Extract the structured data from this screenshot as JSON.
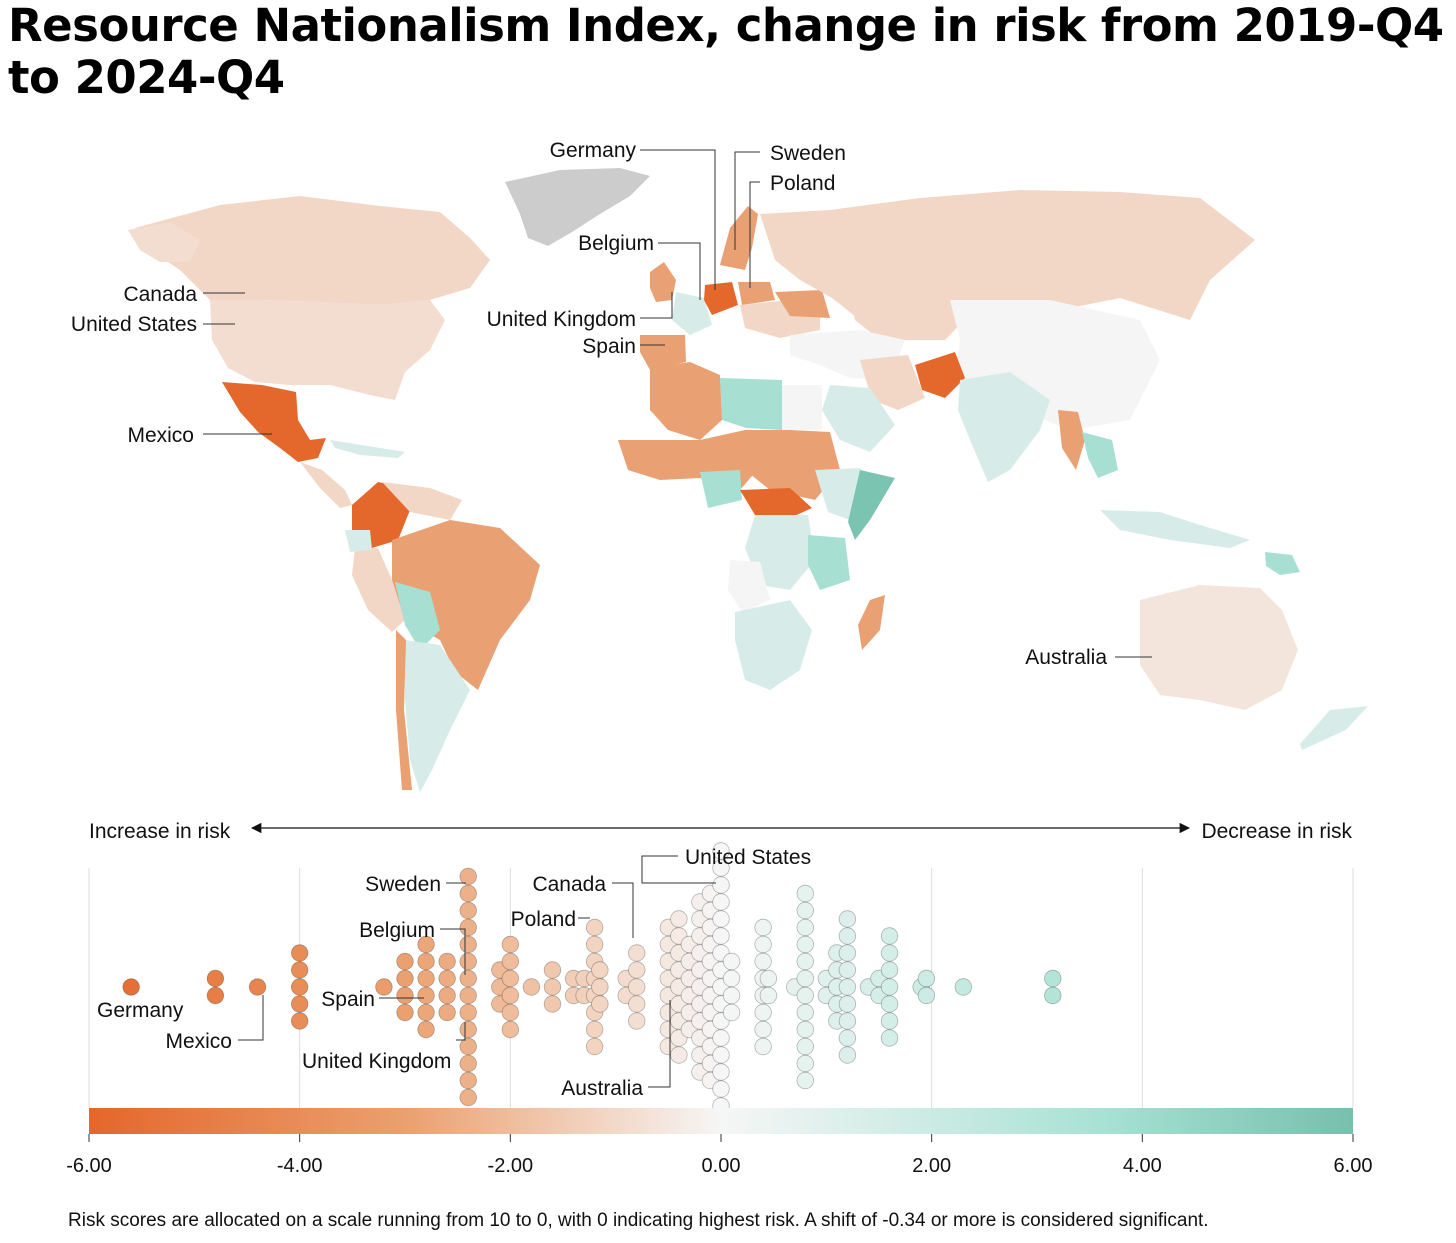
{
  "title": "Resource Nationalism Index, change in risk from 2019-Q4 to 2024-Q4",
  "footnote": "Risk scores are allocated on a scale running from 10 to 0, with 0 indicating highest risk. A shift of -0.34 or more is considered significant.",
  "colors": {
    "increase_strong": "#e4672b",
    "increase_mid": "#e9a072",
    "increase_light": "#f2d4c2",
    "neutral": "#f5f5f5",
    "decrease_light": "#d7ece8",
    "decrease_mid": "#a8dfd3",
    "decrease_strong": "#7cc4b2",
    "no_data": "#cccccc"
  },
  "map": {
    "labels": [
      "Germany",
      "Sweden",
      "Poland",
      "Belgium",
      "Canada",
      "United States",
      "United Kingdom",
      "Spain",
      "Mexico",
      "Australia"
    ]
  },
  "chart_data": {
    "type": "beeswarm",
    "title": "Resource Nationalism Index, change in risk from 2019-Q4 to 2024-Q4",
    "xlabel_left": "Increase in risk",
    "xlabel_right": "Decrease in risk",
    "xlim": [
      -6,
      6
    ],
    "ticks": [
      "-6.00",
      "-4.00",
      "-2.00",
      "0.00",
      "2.00",
      "4.00",
      "6.00"
    ],
    "tick_values": [
      -6,
      -4,
      -2,
      0,
      2,
      4,
      6
    ],
    "columns": [
      {
        "x": -5.6,
        "count": 1
      },
      {
        "x": -4.8,
        "count": 2
      },
      {
        "x": -4.4,
        "count": 1
      },
      {
        "x": -4.0,
        "count": 5
      },
      {
        "x": -3.2,
        "count": 1
      },
      {
        "x": -3.0,
        "count": 4
      },
      {
        "x": -2.8,
        "count": 6
      },
      {
        "x": -2.6,
        "count": 4
      },
      {
        "x": -2.4,
        "count": 14
      },
      {
        "x": -2.1,
        "count": 3
      },
      {
        "x": -2.0,
        "count": 6
      },
      {
        "x": -1.8,
        "count": 1
      },
      {
        "x": -1.6,
        "count": 3
      },
      {
        "x": -1.4,
        "count": 2
      },
      {
        "x": -1.3,
        "count": 2
      },
      {
        "x": -1.2,
        "count": 8
      },
      {
        "x": -1.15,
        "count": 3
      },
      {
        "x": -0.9,
        "count": 2
      },
      {
        "x": -0.8,
        "count": 5
      },
      {
        "x": -0.5,
        "count": 8
      },
      {
        "x": -0.4,
        "count": 9
      },
      {
        "x": -0.3,
        "count": 6
      },
      {
        "x": -0.2,
        "count": 11
      },
      {
        "x": -0.1,
        "count": 12
      },
      {
        "x": 0.0,
        "count": 17
      },
      {
        "x": 0.1,
        "count": 4
      },
      {
        "x": 0.4,
        "count": 8
      },
      {
        "x": 0.45,
        "count": 2
      },
      {
        "x": 0.7,
        "count": 1
      },
      {
        "x": 0.8,
        "count": 12
      },
      {
        "x": 1.0,
        "count": 2
      },
      {
        "x": 1.1,
        "count": 5
      },
      {
        "x": 1.2,
        "count": 9
      },
      {
        "x": 1.4,
        "count": 1
      },
      {
        "x": 1.5,
        "count": 2
      },
      {
        "x": 1.6,
        "count": 7
      },
      {
        "x": 1.9,
        "count": 1
      },
      {
        "x": 1.95,
        "count": 2
      },
      {
        "x": 2.3,
        "count": 1
      },
      {
        "x": 3.15,
        "count": 2
      }
    ],
    "annotations": [
      {
        "label": "Germany",
        "x": -5.6
      },
      {
        "label": "Mexico",
        "x": -4.4
      },
      {
        "label": "Spain",
        "x": -2.8
      },
      {
        "label": "Sweden",
        "x": -2.4
      },
      {
        "label": "Belgium",
        "x": -2.4
      },
      {
        "label": "United Kingdom",
        "x": -2.4
      },
      {
        "label": "Canada",
        "x": -0.8
      },
      {
        "label": "Poland",
        "x": -1.15
      },
      {
        "label": "United States",
        "x": 0.0
      },
      {
        "label": "Australia",
        "x": -0.4
      }
    ]
  }
}
